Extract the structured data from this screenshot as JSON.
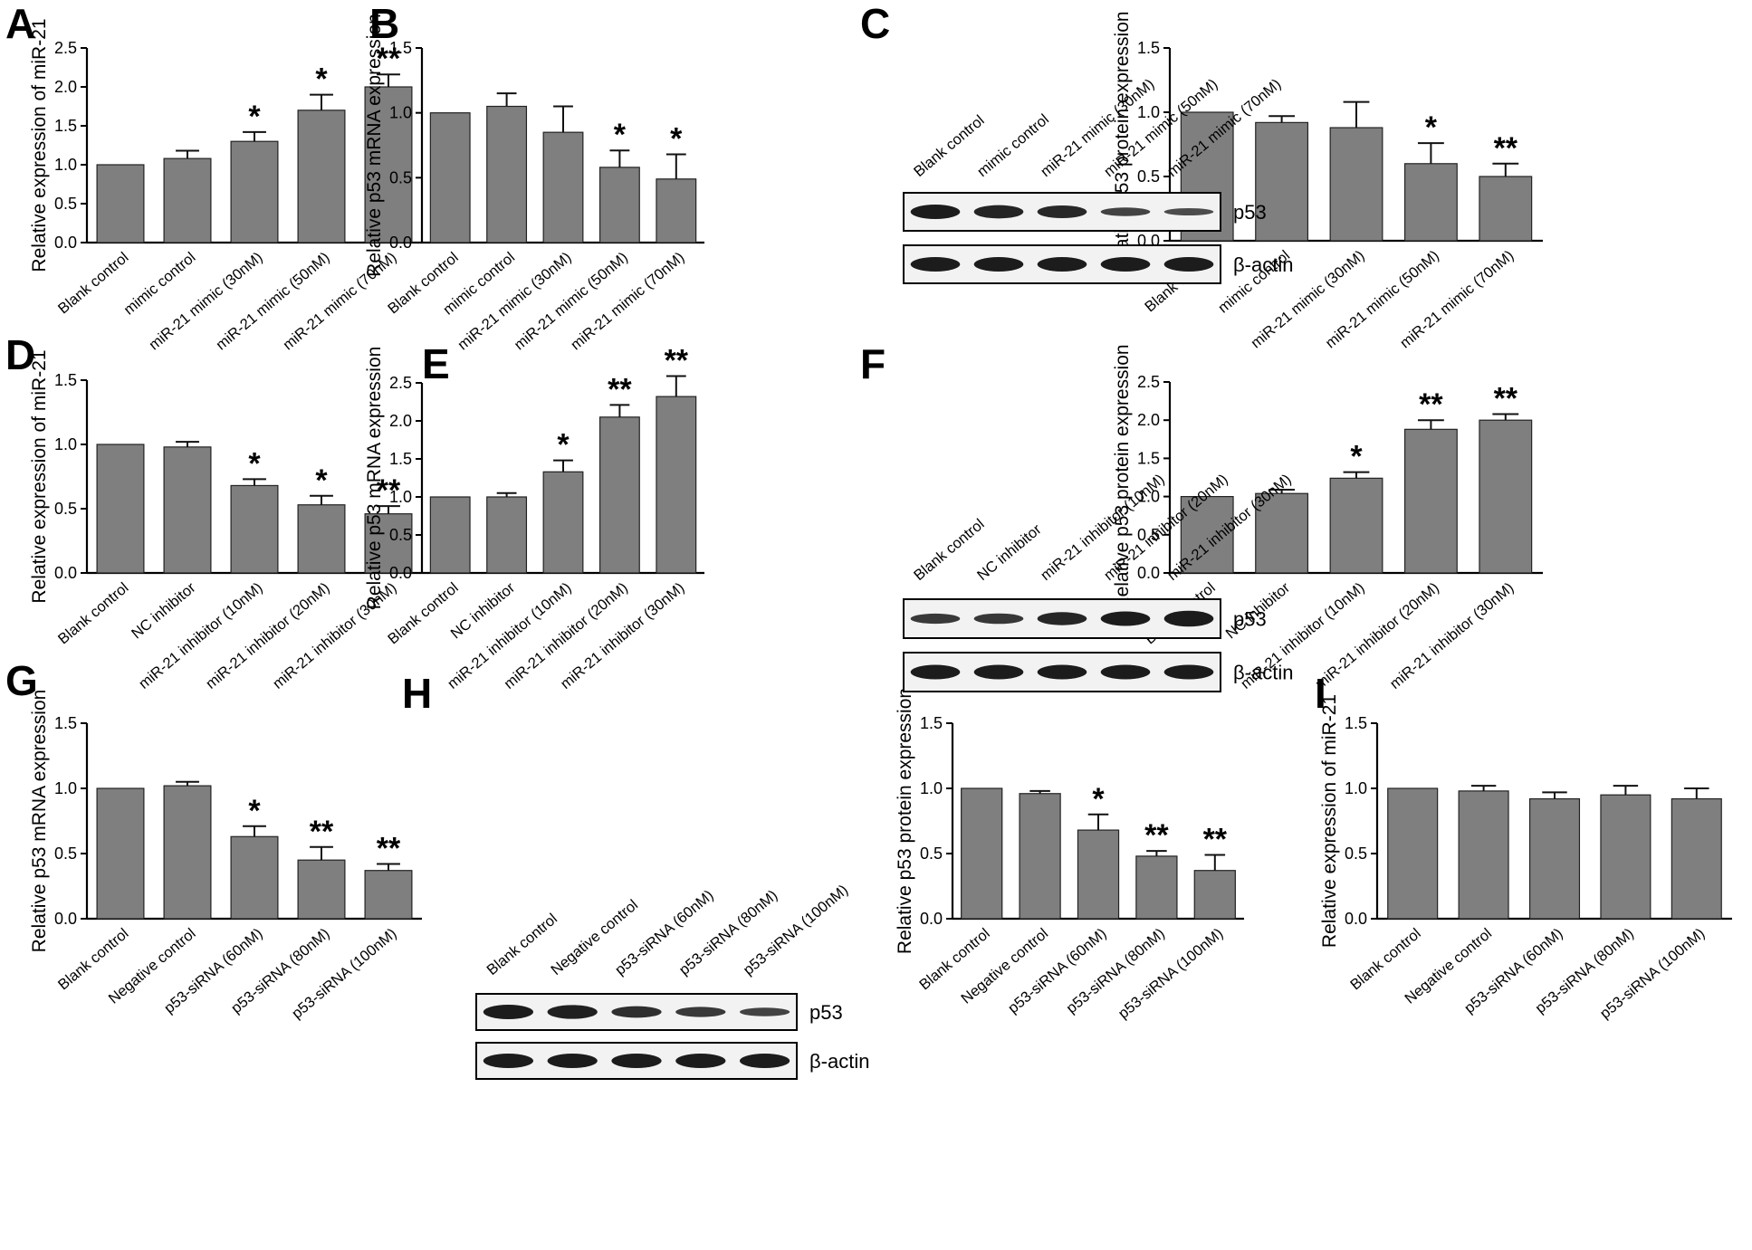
{
  "panel_letters": [
    "A",
    "B",
    "C",
    "D",
    "E",
    "F",
    "G",
    "H",
    "I"
  ],
  "colors": {
    "bar_fill": "#7f7f7f",
    "bar_stroke": "#222222",
    "band": "#1c1c1c",
    "axis": "#000000"
  },
  "chart_data": [
    {
      "id": "A",
      "type": "bar",
      "ylabel": "Relative expression of miR-21",
      "ylim": [
        0,
        2.5
      ],
      "yticks": [
        "0.0",
        "0.5",
        "1.0",
        "1.5",
        "2.0",
        "2.5"
      ],
      "categories": [
        "Blank control",
        "mimic control",
        "miR-21 mimic (30nM)",
        "miR-21 mimic (50nM)",
        "miR-21 mimic (70nM)"
      ],
      "values": [
        1.0,
        1.08,
        1.3,
        1.7,
        2.0
      ],
      "errors": [
        0,
        0.1,
        0.12,
        0.2,
        0.16
      ],
      "significance": [
        "",
        "",
        "*",
        "*",
        "**"
      ]
    },
    {
      "id": "B",
      "type": "bar",
      "ylabel": "Relative p53 mRNA  expression",
      "ylim": [
        0,
        1.5
      ],
      "yticks": [
        "0.0",
        "0.5",
        "1.0",
        "1.5"
      ],
      "categories": [
        "Blank control",
        "mimic control",
        "miR-21 mimic (30nM)",
        "miR-21 mimic (50nM)",
        "miR-21 mimic (70nM)"
      ],
      "values": [
        1.0,
        1.05,
        0.85,
        0.58,
        0.49
      ],
      "errors": [
        0,
        0.1,
        0.2,
        0.13,
        0.19
      ],
      "significance": [
        "",
        "",
        "",
        "*",
        "*"
      ]
    },
    {
      "id": "C",
      "type": "bar",
      "ylabel": "Relative p53 protein expression",
      "ylim": [
        0,
        1.5
      ],
      "yticks": [
        "0.0",
        "0.5",
        "1.0",
        "1.5"
      ],
      "categories": [
        "Blank control",
        "mimic control",
        "miR-21 mimic (30nM)",
        "miR-21 mimic (50nM)",
        "miR-21 mimic (70nM)"
      ],
      "values": [
        1.0,
        0.92,
        0.88,
        0.6,
        0.5
      ],
      "errors": [
        0,
        0.05,
        0.2,
        0.16,
        0.1
      ],
      "significance": [
        "",
        "",
        "",
        "*",
        "**"
      ]
    },
    {
      "id": "D",
      "type": "bar",
      "ylabel": "Relative expression of miR-21",
      "ylim": [
        0,
        1.5
      ],
      "yticks": [
        "0.0",
        "0.5",
        "1.0",
        "1.5"
      ],
      "categories": [
        "Blank control",
        "NC inhibitor",
        "miR-21 inhibitor (10nM)",
        "miR-21 inhibitor (20nM)",
        "miR-21 inhibitor (30nM)"
      ],
      "values": [
        1.0,
        0.98,
        0.68,
        0.53,
        0.46
      ],
      "errors": [
        0,
        0.04,
        0.05,
        0.07,
        0.06
      ],
      "significance": [
        "",
        "",
        "*",
        "*",
        "**"
      ]
    },
    {
      "id": "E",
      "type": "bar",
      "ylabel": "Relative p53 mRNA expression",
      "ylim": [
        0,
        2.5
      ],
      "yticks": [
        "0.0",
        "0.5",
        "1.0",
        "1.5",
        "2.0",
        "2.5"
      ],
      "categories": [
        "Blank control",
        "NC inhibitor",
        "miR-21 inhibitor (10nM)",
        "miR-21 inhibitor (20nM)",
        "miR-21 inhibitor (30nM)"
      ],
      "values": [
        1.0,
        1.0,
        1.33,
        2.05,
        2.32
      ],
      "errors": [
        0,
        0.05,
        0.15,
        0.16,
        0.27
      ],
      "significance": [
        "",
        "",
        "*",
        "**",
        "**"
      ]
    },
    {
      "id": "F",
      "type": "bar",
      "ylabel": "Relative p53 protein expression",
      "ylim": [
        0,
        2.5
      ],
      "yticks": [
        "0.0",
        "0.5",
        "1.0",
        "1.5",
        "2.0",
        "2.5"
      ],
      "categories": [
        "Blank control",
        "NC inhibitor",
        "miR-21 inhibitor (10nM)",
        "miR-21 inhibitor (20nM)",
        "miR-21 inhibitor (30nM)"
      ],
      "values": [
        1.0,
        1.04,
        1.24,
        1.88,
        2.0
      ],
      "errors": [
        0,
        0.05,
        0.08,
        0.12,
        0.08
      ],
      "significance": [
        "",
        "",
        "*",
        "**",
        "**"
      ]
    },
    {
      "id": "G",
      "type": "bar",
      "ylabel": "Relative p53 mRNA expression",
      "ylim": [
        0,
        1.5
      ],
      "yticks": [
        "0.0",
        "0.5",
        "1.0",
        "1.5"
      ],
      "categories": [
        "Blank control",
        "Negative control",
        "p53-siRNA (60nM)",
        "p53-siRNA (80nM)",
        "p53-siRNA (100nM)"
      ],
      "values": [
        1.0,
        1.02,
        0.63,
        0.45,
        0.37
      ],
      "errors": [
        0,
        0.03,
        0.08,
        0.1,
        0.05
      ],
      "significance": [
        "",
        "",
        "*",
        "**",
        "**"
      ]
    },
    {
      "id": "H",
      "type": "bar",
      "ylabel": "Relative p53 protein expression",
      "ylim": [
        0,
        1.5
      ],
      "yticks": [
        "0.0",
        "0.5",
        "1.0",
        "1.5"
      ],
      "categories": [
        "Blank control",
        "Negative control",
        "p53-siRNA (60nM)",
        "p53-siRNA (80nM)",
        "p53-siRNA (100nM)"
      ],
      "values": [
        1.0,
        0.96,
        0.68,
        0.48,
        0.37
      ],
      "errors": [
        0,
        0.02,
        0.12,
        0.04,
        0.12
      ],
      "significance": [
        "",
        "",
        "*",
        "**",
        "**"
      ]
    },
    {
      "id": "I",
      "type": "bar",
      "ylabel": "Relative expression of miR-21",
      "ylim": [
        0,
        1.5
      ],
      "yticks": [
        "0.0",
        "0.5",
        "1.0",
        "1.5"
      ],
      "categories": [
        "Blank control",
        "Negative control",
        "p53-siRNA (60nM)",
        "p53-siRNA (80nM)",
        "p53-siRNA (100nM)"
      ],
      "values": [
        1.0,
        0.98,
        0.92,
        0.95,
        0.92
      ],
      "errors": [
        0,
        0.04,
        0.05,
        0.07,
        0.08
      ],
      "significance": [
        "",
        "",
        "",
        "",
        ""
      ]
    }
  ],
  "blots": [
    {
      "id": "C",
      "lanes": [
        "Blank control",
        "mimic control",
        "miR-21 mimic (30nM)",
        "miR-21 mimic (50nM)",
        "miR-21 mimic (70nM)"
      ],
      "rows": [
        {
          "label": "p53",
          "intensity": [
            1.0,
            0.92,
            0.88,
            0.6,
            0.5
          ]
        },
        {
          "label": "β-actin",
          "intensity": [
            1.0,
            1.0,
            1.0,
            1.0,
            1.0
          ]
        }
      ]
    },
    {
      "id": "F",
      "lanes": [
        "Blank control",
        "NC inhibitor",
        "miR-21 inhibitor (10nM)",
        "miR-21 inhibitor (20nM)",
        "miR-21 inhibitor (30nM)"
      ],
      "rows": [
        {
          "label": "p53",
          "intensity": [
            0.7,
            0.72,
            0.9,
            1.0,
            1.1
          ]
        },
        {
          "label": "β-actin",
          "intensity": [
            1.0,
            1.0,
            1.0,
            1.0,
            1.0
          ]
        }
      ]
    },
    {
      "id": "H",
      "lanes": [
        "Blank control",
        "Negative control",
        "p53-siRNA (60nM)",
        "p53-siRNA (80nM)",
        "p53-siRNA (100nM)"
      ],
      "rows": [
        {
          "label": "p53",
          "intensity": [
            1.0,
            0.96,
            0.8,
            0.7,
            0.6
          ]
        },
        {
          "label": "β-actin",
          "intensity": [
            1.0,
            1.0,
            1.0,
            1.0,
            1.0
          ]
        }
      ]
    }
  ]
}
